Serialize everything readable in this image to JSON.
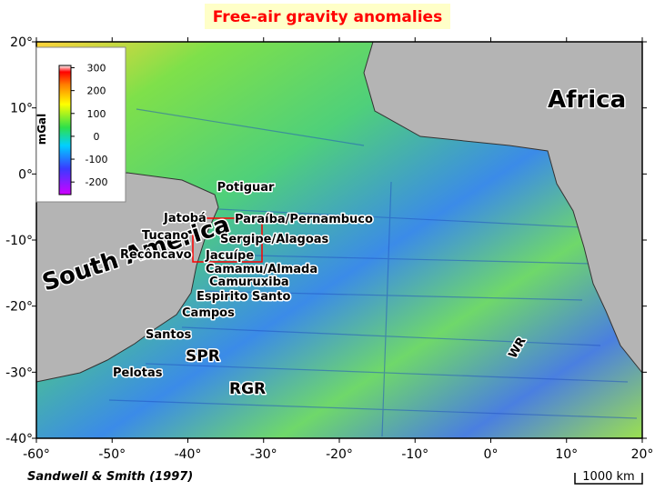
{
  "title": "Free-air gravity anomalies",
  "map": {
    "xlim": [
      -60,
      20
    ],
    "ylim": [
      -40,
      20
    ],
    "xticks": [
      {
        "value": -60,
        "label": "-60°"
      },
      {
        "value": -50,
        "label": "-50°"
      },
      {
        "value": -40,
        "label": "-40°"
      },
      {
        "value": -30,
        "label": "-30°"
      },
      {
        "value": -20,
        "label": "-20°"
      },
      {
        "value": -10,
        "label": "-10°"
      },
      {
        "value": 0,
        "label": "0°"
      },
      {
        "value": 10,
        "label": "10°"
      },
      {
        "value": 20,
        "label": "20°"
      }
    ],
    "yticks": [
      {
        "value": 20,
        "label": "20°"
      },
      {
        "value": 10,
        "label": "10°"
      },
      {
        "value": 0,
        "label": "0°"
      },
      {
        "value": -10,
        "label": "-10°"
      },
      {
        "value": -20,
        "label": "-20°"
      },
      {
        "value": -30,
        "label": "-30°"
      },
      {
        "value": -40,
        "label": "-40°"
      }
    ],
    "continents": [
      "South America",
      "Africa"
    ],
    "basins": [
      "Potiguar",
      "Jatobá",
      "Paraíba/Pernambuco",
      "Tucano",
      "Sergipe/Alagoas",
      "Recôncavo",
      "Jacuípe",
      "Camamu/Almada",
      "Camuruxiba",
      "Espirito Santo",
      "Campos",
      "Santos",
      "Pelotas"
    ],
    "features": [
      "SPR",
      "RGR",
      "WR"
    ]
  },
  "colorbar": {
    "label": "mGal",
    "clim": [
      -255,
      310
    ],
    "ticks": [
      300,
      200,
      100,
      0,
      -100,
      -200
    ]
  },
  "citation": "Sandwell & Smith (1997)",
  "scale_bar": "1000 km"
}
